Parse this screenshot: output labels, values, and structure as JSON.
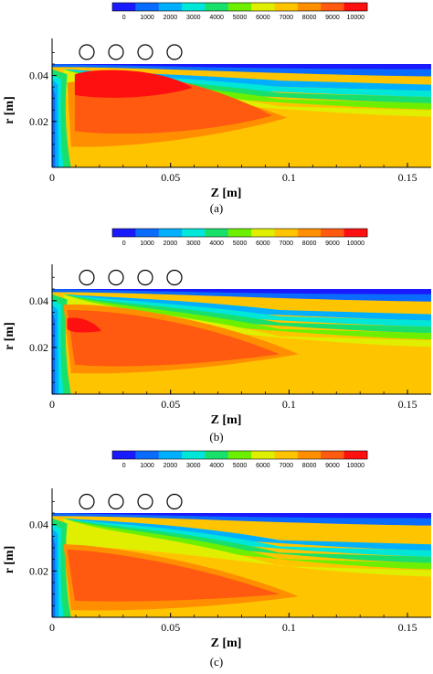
{
  "colorbar": {
    "ticks": [
      "0",
      "1000",
      "2000",
      "3000",
      "4000",
      "5000",
      "6000",
      "7000",
      "8000",
      "9000",
      "10000"
    ],
    "colors": [
      "#1a1aff",
      "#0a6cff",
      "#00b0ff",
      "#00e6d8",
      "#19e06a",
      "#6cf000",
      "#e0ef00",
      "#ffc400",
      "#ff8f00",
      "#ff5a10",
      "#ff1010"
    ]
  },
  "axes": {
    "xlabel": "Z [m]",
    "ylabel": "r [m]",
    "xticks": [
      "0",
      "0.05",
      "0.1",
      "0.15"
    ],
    "yticks": [
      "0.02",
      "0.04"
    ]
  },
  "coils": 4,
  "captions": [
    "(a)",
    "(b)",
    "(c)"
  ],
  "chart_data": [
    {
      "type": "heatmap",
      "caption": "(a)",
      "xlabel": "Z [m]",
      "ylabel": "r [m]",
      "xlim": [
        0,
        0.16
      ],
      "ylim": [
        0,
        0.045
      ],
      "colorbar_range": [
        0,
        10000
      ],
      "colorbar_levels": [
        0,
        1000,
        2000,
        3000,
        4000,
        5000,
        6000,
        7000,
        8000,
        9000,
        10000
      ],
      "peak_value": 10000,
      "peak_location": {
        "z": 0.027,
        "r": 0.033
      }
    },
    {
      "type": "heatmap",
      "caption": "(b)",
      "xlabel": "Z [m]",
      "ylabel": "r [m]",
      "xlim": [
        0,
        0.16
      ],
      "ylim": [
        0,
        0.045
      ],
      "colorbar_range": [
        0,
        10000
      ],
      "colorbar_levels": [
        0,
        1000,
        2000,
        3000,
        4000,
        5000,
        6000,
        7000,
        8000,
        9000,
        10000
      ],
      "peak_value": 10000,
      "peak_location": {
        "z": 0.015,
        "r": 0.027
      }
    },
    {
      "type": "heatmap",
      "caption": "(c)",
      "xlabel": "Z [m]",
      "ylabel": "r [m]",
      "xlim": [
        0,
        0.16
      ],
      "ylim": [
        0,
        0.045
      ],
      "colorbar_range": [
        0,
        10000
      ],
      "colorbar_levels": [
        0,
        1000,
        2000,
        3000,
        4000,
        5000,
        6000,
        7000,
        8000,
        9000,
        10000
      ],
      "peak_value": 9000,
      "peak_location": {
        "z": 0.04,
        "r": 0.02
      }
    }
  ]
}
